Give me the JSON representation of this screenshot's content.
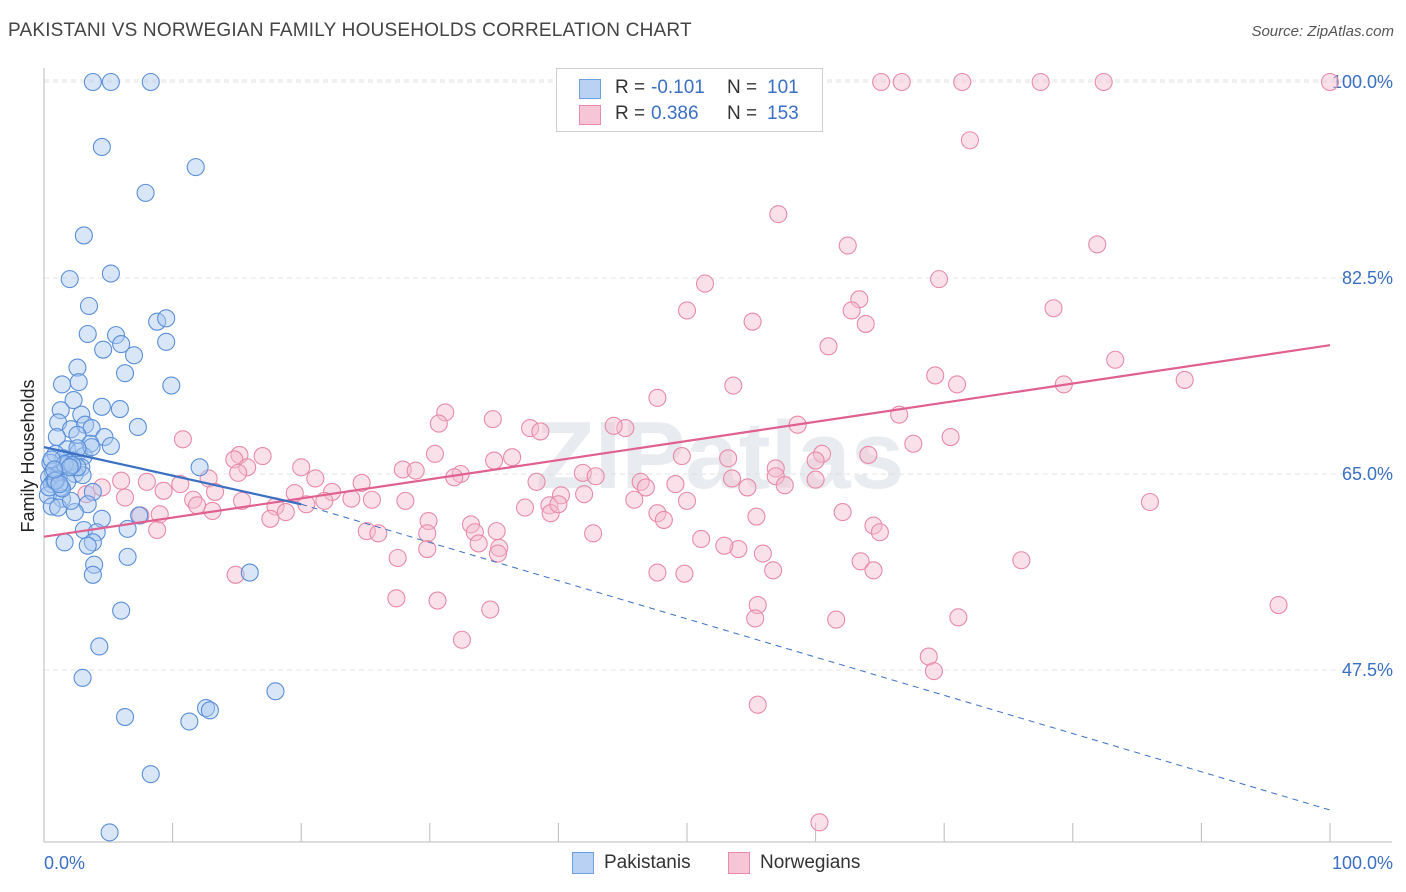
{
  "title": "PAKISTANI VS NORWEGIAN FAMILY HOUSEHOLDS CORRELATION CHART",
  "source": "Source: ZipAtlas.com",
  "watermark": "ZIPatlas",
  "legend": {
    "rows": [
      {
        "r_label": "R =",
        "r_value": "-0.101",
        "n_label": "N =",
        "n_value": "101",
        "color": "#6f9fe0"
      },
      {
        "r_label": "R =",
        "r_value": "0.386",
        "n_label": "N =",
        "n_value": "153",
        "color": "#e88aa8"
      }
    ]
  },
  "chart_data": {
    "type": "scatter",
    "title": "PAKISTANI VS NORWEGIAN FAMILY HOUSEHOLDS CORRELATION CHART",
    "xlabel": "",
    "ylabel": "Family Households",
    "xlim": [
      0,
      100
    ],
    "ylim": [
      32,
      102
    ],
    "x_tick_labels": [
      "0.0%",
      "100.0%"
    ],
    "y_ticks": [
      100,
      82.5,
      65,
      47.5
    ],
    "y_tick_labels": [
      "100.0%",
      "82.5%",
      "65.0%",
      "47.5%"
    ],
    "grid": true,
    "legend_position": "top-center",
    "colors": {
      "Pakistanis": "#6f9fe0",
      "Norwegians": "#e88aa8",
      "pak_line": "#3a6fc4",
      "nor_line": "#e06090",
      "tick_label": "#3a6fc4"
    },
    "series": [
      {
        "name": "Pakistanis",
        "r": -0.101,
        "n": 101,
        "trend_solid": [
          [
            0,
            67.4
          ],
          [
            20,
            62.3
          ]
        ],
        "trend_dashed": [
          [
            20,
            62.3
          ],
          [
            100,
            35
          ]
        ],
        "points": [
          [
            3.8,
            100
          ],
          [
            5.2,
            100
          ],
          [
            8.3,
            100
          ],
          [
            4.5,
            94.2
          ],
          [
            11.8,
            92.4
          ],
          [
            7.9,
            90.1
          ],
          [
            3.1,
            86.3
          ],
          [
            2.0,
            82.4
          ],
          [
            5.2,
            82.9
          ],
          [
            3.5,
            80.0
          ],
          [
            8.8,
            78.6
          ],
          [
            9.5,
            78.9
          ],
          [
            3.4,
            77.5
          ],
          [
            5.6,
            77.4
          ],
          [
            6.0,
            76.6
          ],
          [
            4.6,
            76.1
          ],
          [
            9.5,
            76.8
          ],
          [
            7.0,
            75.6
          ],
          [
            2.6,
            74.5
          ],
          [
            6.3,
            74.0
          ],
          [
            1.4,
            73.0
          ],
          [
            2.7,
            73.2
          ],
          [
            9.9,
            72.9
          ],
          [
            2.3,
            71.6
          ],
          [
            4.5,
            71.0
          ],
          [
            1.3,
            70.7
          ],
          [
            5.9,
            70.8
          ],
          [
            2.9,
            70.3
          ],
          [
            1.1,
            69.6
          ],
          [
            2.1,
            69.0
          ],
          [
            3.2,
            69.4
          ],
          [
            3.7,
            69.1
          ],
          [
            7.3,
            69.2
          ],
          [
            1.0,
            68.3
          ],
          [
            2.6,
            68.5
          ],
          [
            4.7,
            68.3
          ],
          [
            3.6,
            67.7
          ],
          [
            5.2,
            67.5
          ],
          [
            1.8,
            67.2
          ],
          [
            2.7,
            67.0
          ],
          [
            0.9,
            66.8
          ],
          [
            1.5,
            66.4
          ],
          [
            2.3,
            66.2
          ],
          [
            3.1,
            66.6
          ],
          [
            0.5,
            66.0
          ],
          [
            1.6,
            65.8
          ],
          [
            2.9,
            65.6
          ],
          [
            0.7,
            65.2
          ],
          [
            1.2,
            65.1
          ],
          [
            2.4,
            65.0
          ],
          [
            3.0,
            64.9
          ],
          [
            0.4,
            64.7
          ],
          [
            1.0,
            64.5
          ],
          [
            1.8,
            64.3
          ],
          [
            0.6,
            64.1
          ],
          [
            1.3,
            63.8
          ],
          [
            3.8,
            63.4
          ],
          [
            0.3,
            63.1
          ],
          [
            1.4,
            62.8
          ],
          [
            3.4,
            62.3
          ],
          [
            0.6,
            62.1
          ],
          [
            1.1,
            62.0
          ],
          [
            2.4,
            61.6
          ],
          [
            7.4,
            61.3
          ],
          [
            4.5,
            61.0
          ],
          [
            6.5,
            60.1
          ],
          [
            3.1,
            60.0
          ],
          [
            4.1,
            59.8
          ],
          [
            1.6,
            58.9
          ],
          [
            3.8,
            58.9
          ],
          [
            3.4,
            58.6
          ],
          [
            6.5,
            57.6
          ],
          [
            3.9,
            56.9
          ],
          [
            3.8,
            56.0
          ],
          [
            16.0,
            56.2
          ],
          [
            6.0,
            52.8
          ],
          [
            4.3,
            49.6
          ],
          [
            3.0,
            46.8
          ],
          [
            18.0,
            45.6
          ],
          [
            12.6,
            44.1
          ],
          [
            12.9,
            43.9
          ],
          [
            6.3,
            43.3
          ],
          [
            11.3,
            42.9
          ],
          [
            8.3,
            38.2
          ],
          [
            5.1,
            33.0
          ],
          [
            12.1,
            65.6
          ],
          [
            0.8,
            64.4
          ],
          [
            2.1,
            62.6
          ],
          [
            1.9,
            66.0
          ],
          [
            0.4,
            63.8
          ],
          [
            2.6,
            65.6
          ],
          [
            3.7,
            67.4
          ],
          [
            1.6,
            65.9
          ],
          [
            1.4,
            63.7
          ],
          [
            0.9,
            64.4
          ],
          [
            2.2,
            65.8
          ],
          [
            0.6,
            66.3
          ],
          [
            2.0,
            65.6
          ],
          [
            2.6,
            67.3
          ],
          [
            1.2,
            64.1
          ],
          [
            0.8,
            65.4
          ]
        ]
      },
      {
        "name": "Norwegians",
        "r": 0.386,
        "n": 153,
        "trend": [
          [
            0,
            59.4
          ],
          [
            100,
            76.5
          ]
        ],
        "points": [
          [
            65.1,
            100
          ],
          [
            66.7,
            100
          ],
          [
            71.4,
            100
          ],
          [
            77.5,
            100
          ],
          [
            82.4,
            100
          ],
          [
            100,
            100
          ],
          [
            72.0,
            94.8
          ],
          [
            57.1,
            88.2
          ],
          [
            62.5,
            85.4
          ],
          [
            81.9,
            85.5
          ],
          [
            69.6,
            82.4
          ],
          [
            51.4,
            82.0
          ],
          [
            63.4,
            80.6
          ],
          [
            50.0,
            79.6
          ],
          [
            78.5,
            79.8
          ],
          [
            55.1,
            78.6
          ],
          [
            62.8,
            79.6
          ],
          [
            63.9,
            78.4
          ],
          [
            61.0,
            76.4
          ],
          [
            83.3,
            75.2
          ],
          [
            88.7,
            73.4
          ],
          [
            69.3,
            73.8
          ],
          [
            53.6,
            72.9
          ],
          [
            71.0,
            73.0
          ],
          [
            79.3,
            73.0
          ],
          [
            47.7,
            71.8
          ],
          [
            66.5,
            70.3
          ],
          [
            31.2,
            70.5
          ],
          [
            34.9,
            69.9
          ],
          [
            30.7,
            69.5
          ],
          [
            37.8,
            69.1
          ],
          [
            45.2,
            69.1
          ],
          [
            44.3,
            69.3
          ],
          [
            58.6,
            69.4
          ],
          [
            70.5,
            68.3
          ],
          [
            10.8,
            68.1
          ],
          [
            67.6,
            67.7
          ],
          [
            38.6,
            68.8
          ],
          [
            30.4,
            66.8
          ],
          [
            36.4,
            66.5
          ],
          [
            49.6,
            66.6
          ],
          [
            15.2,
            66.7
          ],
          [
            14.8,
            66.3
          ],
          [
            17.0,
            66.6
          ],
          [
            35.0,
            66.2
          ],
          [
            60.5,
            66.8
          ],
          [
            64.1,
            66.7
          ],
          [
            53.2,
            66.4
          ],
          [
            60.0,
            66.2
          ],
          [
            56.9,
            65.5
          ],
          [
            15.8,
            65.6
          ],
          [
            41.9,
            65.1
          ],
          [
            27.9,
            65.4
          ],
          [
            28.9,
            65.3
          ],
          [
            32.4,
            65.0
          ],
          [
            20.0,
            65.6
          ],
          [
            42.9,
            64.8
          ],
          [
            31.9,
            64.7
          ],
          [
            21.1,
            64.6
          ],
          [
            56.9,
            64.8
          ],
          [
            53.5,
            64.6
          ],
          [
            6.0,
            64.4
          ],
          [
            8.0,
            64.3
          ],
          [
            10.6,
            64.1
          ],
          [
            12.8,
            64.6
          ],
          [
            15.1,
            65.1
          ],
          [
            24.7,
            64.2
          ],
          [
            38.3,
            64.3
          ],
          [
            46.4,
            64.3
          ],
          [
            49.1,
            64.1
          ],
          [
            4.5,
            63.8
          ],
          [
            9.3,
            63.5
          ],
          [
            13.3,
            63.4
          ],
          [
            19.5,
            63.3
          ],
          [
            22.4,
            63.4
          ],
          [
            42.0,
            63.2
          ],
          [
            40.2,
            63.1
          ],
          [
            46.8,
            63.8
          ],
          [
            54.7,
            63.8
          ],
          [
            57.6,
            64.0
          ],
          [
            3.3,
            63.2
          ],
          [
            6.3,
            62.9
          ],
          [
            11.6,
            62.7
          ],
          [
            15.4,
            62.6
          ],
          [
            21.8,
            62.6
          ],
          [
            23.9,
            62.8
          ],
          [
            25.5,
            62.7
          ],
          [
            28.1,
            62.6
          ],
          [
            45.9,
            62.7
          ],
          [
            50.0,
            62.6
          ],
          [
            11.9,
            62.2
          ],
          [
            18.0,
            62.1
          ],
          [
            20.4,
            62.3
          ],
          [
            37.4,
            62.0
          ],
          [
            39.3,
            62.2
          ],
          [
            9.0,
            61.4
          ],
          [
            13.1,
            61.7
          ],
          [
            18.8,
            61.6
          ],
          [
            39.4,
            61.5
          ],
          [
            40.0,
            62.3
          ],
          [
            47.7,
            61.5
          ],
          [
            7.5,
            61.3
          ],
          [
            17.6,
            61.0
          ],
          [
            29.9,
            60.8
          ],
          [
            33.2,
            60.5
          ],
          [
            48.2,
            60.9
          ],
          [
            55.4,
            61.2
          ],
          [
            8.8,
            60.0
          ],
          [
            25.1,
            59.9
          ],
          [
            29.8,
            59.7
          ],
          [
            33.5,
            59.8
          ],
          [
            35.2,
            59.9
          ],
          [
            64.5,
            60.4
          ],
          [
            65.0,
            59.8
          ],
          [
            26.0,
            59.7
          ],
          [
            42.7,
            59.7
          ],
          [
            33.8,
            58.8
          ],
          [
            35.4,
            58.4
          ],
          [
            51.1,
            59.2
          ],
          [
            54.0,
            58.3
          ],
          [
            55.9,
            57.9
          ],
          [
            29.8,
            58.3
          ],
          [
            52.9,
            58.6
          ],
          [
            27.5,
            57.5
          ],
          [
            35.3,
            57.9
          ],
          [
            63.5,
            57.2
          ],
          [
            76.0,
            57.3
          ],
          [
            47.7,
            56.2
          ],
          [
            49.8,
            56.1
          ],
          [
            56.7,
            56.4
          ],
          [
            64.5,
            56.4
          ],
          [
            14.9,
            56.0
          ],
          [
            30.6,
            53.7
          ],
          [
            55.5,
            53.3
          ],
          [
            96.0,
            53.3
          ],
          [
            34.7,
            52.9
          ],
          [
            61.6,
            52.0
          ],
          [
            55.3,
            52.1
          ],
          [
            27.4,
            53.9
          ],
          [
            71.1,
            52.2
          ],
          [
            32.5,
            50.2
          ],
          [
            68.8,
            48.7
          ],
          [
            69.2,
            47.4
          ],
          [
            55.5,
            44.4
          ],
          [
            60.3,
            33.9
          ],
          [
            86.0,
            62.5
          ],
          [
            60.0,
            64.5
          ],
          [
            62.1,
            61.6
          ]
        ]
      }
    ]
  }
}
